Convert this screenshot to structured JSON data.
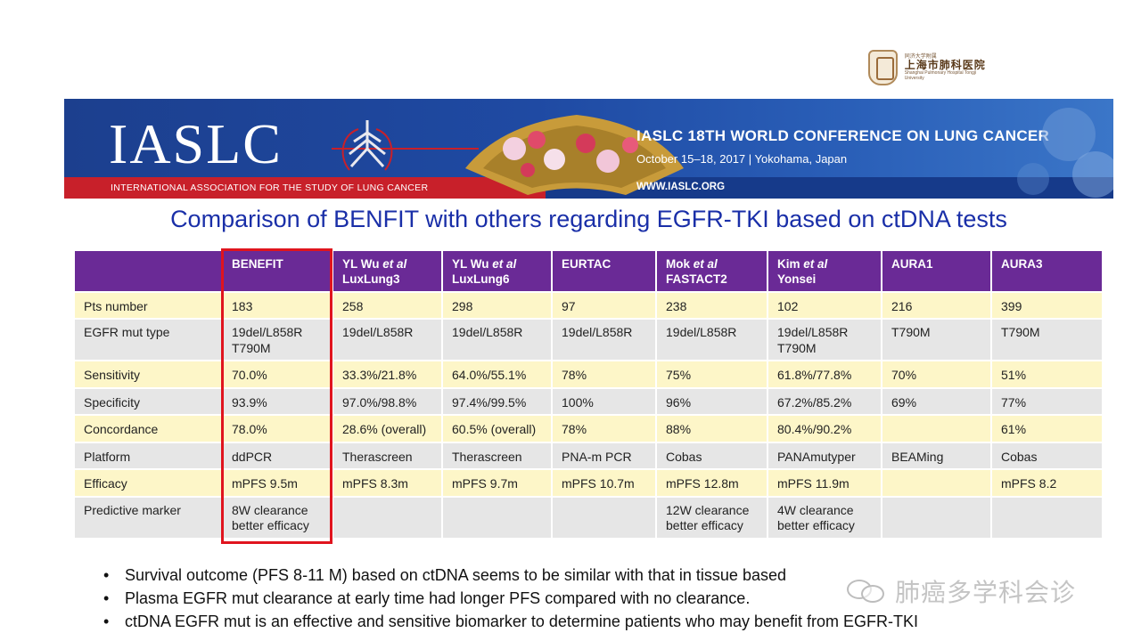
{
  "hospital": {
    "sub": "同济大学附属",
    "name": "上海市肺科医院",
    "en": "Shanghai Pulmonary Hospital Tongji University"
  },
  "banner": {
    "logo": "IASLC",
    "association": "INTERNATIONAL ASSOCIATION FOR THE STUDY OF LUNG CANCER",
    "conference_title": "IASLC 18TH WORLD CONFERENCE ON LUNG CANCER",
    "conference_date": "October 15–18, 2017 | Yokohama, Japan",
    "url": "WWW.IASLC.ORG"
  },
  "slide_title": "Comparison of BENFIT with others regarding EGFR-TKI based on ctDNA tests",
  "table": {
    "headers": [
      {
        "main": "",
        "italic": "",
        "line2": ""
      },
      {
        "main": "BENEFIT",
        "italic": "",
        "line2": ""
      },
      {
        "main": "YL Wu ",
        "italic": "et al",
        "line2": "LuxLung3"
      },
      {
        "main": "YL Wu ",
        "italic": "et al",
        "line2": "LuxLung6"
      },
      {
        "main": "EURTAC",
        "italic": "",
        "line2": ""
      },
      {
        "main": "Mok ",
        "italic": "et al",
        "line2": "FASTACT2"
      },
      {
        "main": "Kim ",
        "italic": "et al",
        "line2": "Yonsei"
      },
      {
        "main": "AURA1",
        "italic": "",
        "line2": ""
      },
      {
        "main": "AURA3",
        "italic": "",
        "line2": ""
      }
    ],
    "rows": [
      {
        "cells": [
          "Pts number",
          "183",
          "258",
          "298",
          "97",
          "238",
          "102",
          "216",
          "399"
        ]
      },
      {
        "cells": [
          "EGFR mut type",
          "19del/L858R\nT790M",
          "19del/L858R",
          "19del/L858R",
          "19del/L858R",
          "19del/L858R",
          "19del/L858R\nT790M",
          "T790M",
          "T790M"
        ]
      },
      {
        "cells": [
          "Sensitivity",
          "70.0%",
          "33.3%/21.8%",
          "64.0%/55.1%",
          "78%",
          "75%",
          "61.8%/77.8%",
          "70%",
          "51%"
        ]
      },
      {
        "cells": [
          "Specificity",
          "93.9%",
          "97.0%/98.8%",
          "97.4%/99.5%",
          "100%",
          "96%",
          "67.2%/85.2%",
          "69%",
          "77%"
        ]
      },
      {
        "cells": [
          "Concordance",
          "78.0%",
          "28.6% (overall)",
          "60.5% (overall)",
          "78%",
          "88%",
          "80.4%/90.2%",
          "",
          "61%"
        ]
      },
      {
        "cells": [
          "Platform",
          "ddPCR",
          "Therascreen",
          "Therascreen",
          "PNA-m PCR",
          "Cobas",
          "PANAmutyper",
          "BEAMing",
          "Cobas"
        ]
      },
      {
        "cells": [
          "Efficacy",
          "mPFS 9.5m",
          "mPFS 8.3m",
          "mPFS 9.7m",
          "mPFS 10.7m",
          "mPFS 12.8m",
          "mPFS 11.9m",
          "",
          "mPFS 8.2"
        ]
      },
      {
        "cells": [
          "Predictive marker",
          "8W clearance\nbetter efficacy",
          "",
          "",
          "",
          "12W clearance\nbetter efficacy",
          "4W clearance\nbetter efficacy",
          "",
          ""
        ]
      }
    ]
  },
  "bullets": [
    "Survival outcome (PFS 8-11 M) based on ctDNA  seems to be similar with that in tissue based",
    "Plasma EGFR mut clearance at early time had longer PFS compared with no clearance.",
    "ctDNA EGFR mut is an effective and sensitive biomarker to determine patients who may benefit from EGFR-TKI"
  ],
  "watermark": "肺癌多学科会诊",
  "colors": {
    "header_purple": "#6a2a96",
    "highlight_yellow": "#fdf6c8",
    "plain_gray": "#e6e6e6",
    "title_blue": "#1a2fa8",
    "box_red": "#e0141e"
  }
}
